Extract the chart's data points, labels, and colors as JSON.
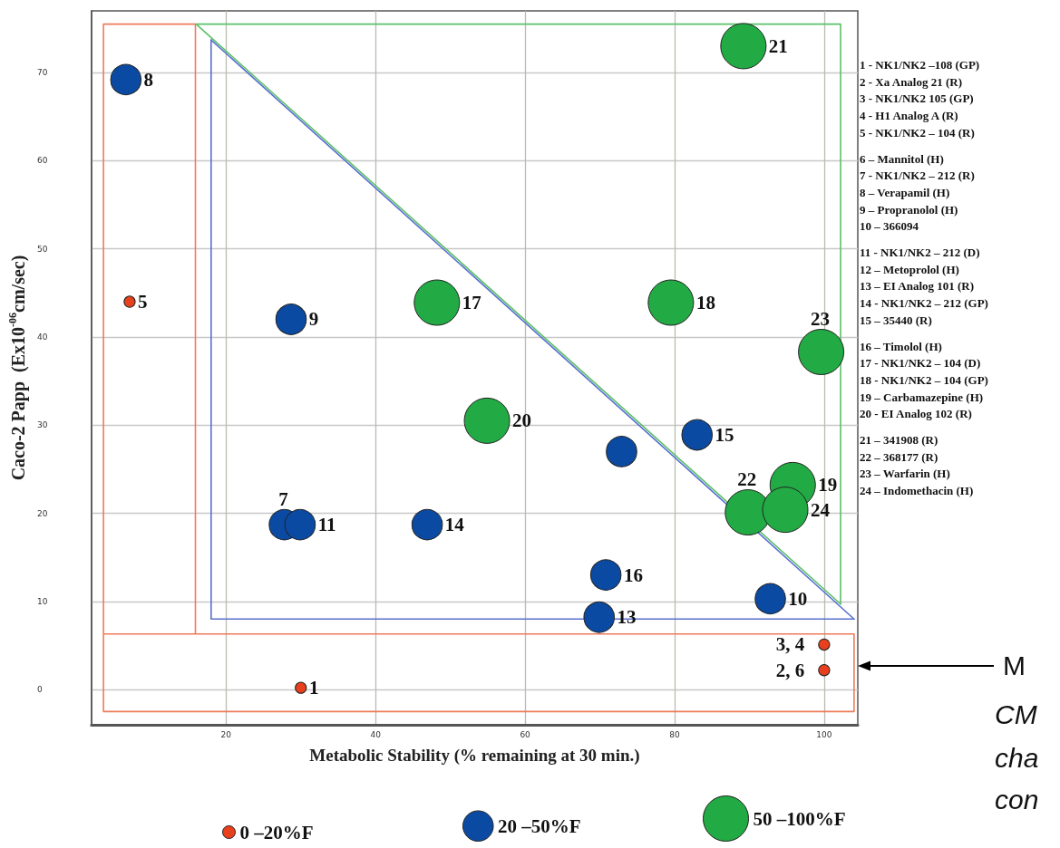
{
  "chart_data": {
    "type": "bubble",
    "xlabel": "Metabolic Stability (% remaining at 30 min.)",
    "ylabel": "Caco-2 Papp  (Ex10$^{-06}$cm/sec)",
    "xlim": [
      2,
      104.5
    ],
    "xticks": [
      20,
      40,
      60,
      80,
      100
    ],
    "ylim": [
      -4,
      77
    ],
    "yticks": [
      0,
      10,
      20,
      30,
      40,
      50,
      60,
      70
    ],
    "grid": true,
    "legend": "bottom",
    "marker": "circle",
    "series": [
      {
        "type": "line",
        "color": "#f07a5a",
        "marker": "none",
        "line_style": "solid",
        "x": [
          15.9,
          3.6,
          3.6,
          15.9,
          15.9,
          104,
          104,
          3.6,
          3.6
        ],
        "values": [
          6.3,
          6.3,
          75.5,
          75.5,
          6.3,
          6.3,
          -2.5,
          -2.5,
          6.3
        ]
      },
      {
        "type": "line",
        "color": "#5a70cf",
        "marker": "none",
        "line_style": "solid",
        "x": [
          18,
          104
        ],
        "values": [
          73.7,
          8
        ]
      },
      {
        "type": "line",
        "color": "#5a70cf",
        "marker": "none",
        "line_style": "solid",
        "x": [
          18,
          18,
          104
        ],
        "values": [
          73.7,
          8,
          8
        ]
      },
      {
        "type": "line",
        "color": "#5cc06a",
        "marker": "none",
        "line_style": "solid",
        "x": [
          16,
          102.2
        ],
        "values": [
          75.5,
          9.7
        ]
      },
      {
        "type": "line",
        "color": "#5cc06a",
        "marker": "none",
        "line_style": "solid",
        "x": [
          16,
          102.2,
          102.2
        ],
        "values": [
          75.5,
          75.5,
          9.7
        ]
      },
      {
        "name": "0 –20%F",
        "color": "#e8401c",
        "x": [
          30,
          7.1,
          100,
          100
        ],
        "values": [
          0.2,
          44,
          5.1,
          2.2
        ],
        "sizes": [
          0.06,
          0.06,
          0.06,
          0.06
        ]
      },
      {
        "name": "20 –50%F",
        "color": "#0b4aa2",
        "x": [
          6.6,
          28.7,
          27.8,
          29.9,
          46.9,
          72.9,
          83.0,
          70.8,
          69.9,
          92.8
        ],
        "values": [
          69.2,
          42,
          18.7,
          18.7,
          18.7,
          27.0,
          28.9,
          13.0,
          8.2,
          10.3
        ],
        "sizes": [
          0.45,
          0.45,
          0.45,
          0.45,
          0.45,
          0.45,
          0.45,
          0.45,
          0.45,
          0.45
        ]
      },
      {
        "name": "50 –100%F",
        "color": "#22aa44",
        "x": [
          89.2,
          48.2,
          79.5,
          99.6,
          54.9,
          95.8,
          89.8,
          94.8
        ],
        "values": [
          73.0,
          43.9,
          43.9,
          38.3,
          30.5,
          23.2,
          20.1,
          20.4
        ],
        "sizes": [
          1,
          1,
          1,
          1,
          1,
          1,
          1,
          1
        ]
      }
    ],
    "annotations": [
      {
        "text": "1",
        "x": 30,
        "y": 0.2
      },
      {
        "text": "5",
        "x": 7.1,
        "y": 44
      },
      {
        "text": "3, 4",
        "x": 100,
        "y": 5.1
      },
      {
        "text": "2, 6",
        "x": 100,
        "y": 2.2
      },
      {
        "text": "8",
        "x": 6.6,
        "y": 69.2
      },
      {
        "text": "9",
        "x": 28.7,
        "y": 42
      },
      {
        "text": "7",
        "x": 27.8,
        "y": 18.7
      },
      {
        "text": "11",
        "x": 29.9,
        "y": 18.7
      },
      {
        "text": "14",
        "x": 46.9,
        "y": 18.7
      },
      {
        "text": "15",
        "x": 83.0,
        "y": 28.9
      },
      {
        "text": "16",
        "x": 70.8,
        "y": 13.0
      },
      {
        "text": "13",
        "x": 69.9,
        "y": 8.2
      },
      {
        "text": "10",
        "x": 92.8,
        "y": 10.3
      },
      {
        "text": "21",
        "x": 89.2,
        "y": 73.0
      },
      {
        "text": "17",
        "x": 48.2,
        "y": 43.9
      },
      {
        "text": "18",
        "x": 79.5,
        "y": 43.9
      },
      {
        "text": "23",
        "x": 99.6,
        "y": 38.3
      },
      {
        "text": "20",
        "x": 54.9,
        "y": 30.5
      },
      {
        "text": "19",
        "x": 95.8,
        "y": 23.2
      },
      {
        "text": "22",
        "x": 89.8,
        "y": 20.1
      },
      {
        "text": "24",
        "x": 94.8,
        "y": 20.4
      },
      "1 - NK1/NK2 –108 (GP)",
      "2 - Xa Analog 21 (R)",
      "3 - NK1/NK2 105 (GP)",
      "4 - H1 Analog A (R)",
      "5 - NK1/NK2 – 104 (R)",
      "6 – Mannitol (H)",
      "7 - NK1/NK2 – 212 (R)",
      "8 – Verapamil (H)",
      "9 – Propranolol (H)",
      "10 – 366094",
      "11 - NK1/NK2 – 212 (D)",
      "12 – Metoprolol (H)",
      "13 – EI Analog 101 (R)",
      "14 - NK1/NK2 – 212 (GP)",
      "15 – 35440 (R)",
      "16 – Timolol (H)",
      "17 - NK1/NK2 – 104 (D)",
      "18 - NK1/NK2 – 104 (GP)",
      "19 – Carbamazepine (H)",
      "20 - EI Analog 102 (R)",
      "21 – 341908 (R)",
      "22 – 368177 (R)",
      "23 – Warfarin (H)",
      "24 – Indomethacin (H)",
      "M",
      "CM",
      "cha",
      "con"
    ]
  }
}
